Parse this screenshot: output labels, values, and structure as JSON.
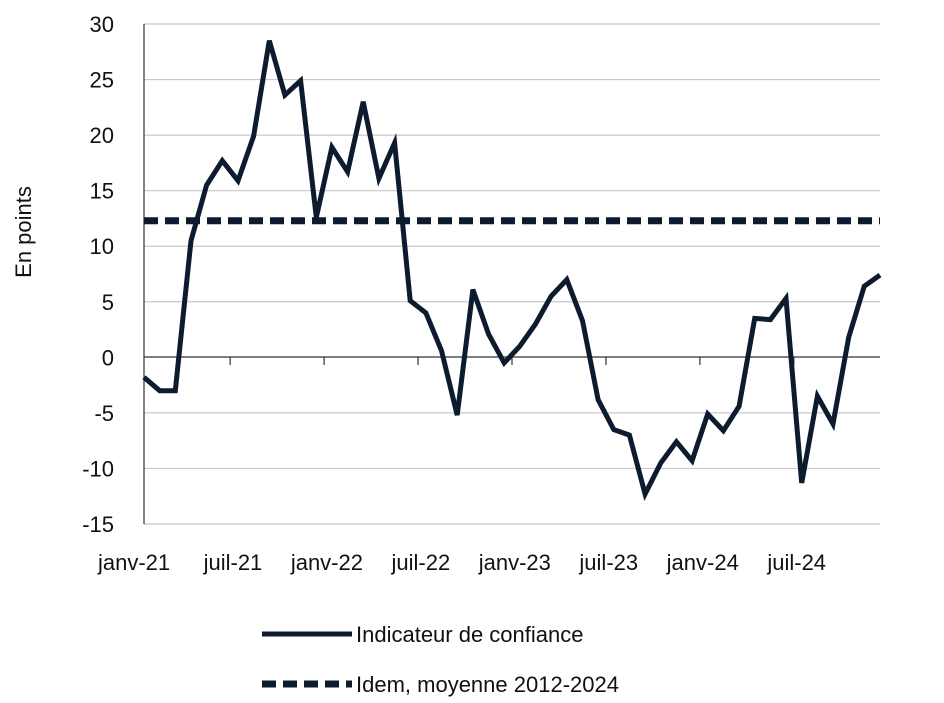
{
  "chart_data": {
    "type": "line",
    "ylabel": "En points",
    "ylim": [
      -15,
      30
    ],
    "yticks": [
      30,
      25,
      20,
      15,
      10,
      5,
      0,
      -5,
      -10,
      -15
    ],
    "x_tick_labels": [
      "janv-21",
      "juil-21",
      "janv-22",
      "juil-22",
      "janv-23",
      "juil-23",
      "janv-24",
      "juil-24"
    ],
    "grid": "horizontal",
    "legend_position": "bottom",
    "colors": {
      "line": "#0d1b2e",
      "grid": "#c8c8c8",
      "axis": "#333333"
    },
    "series": [
      {
        "name": "Indicateur de confiance",
        "style": "solid",
        "values": [
          -1.8,
          -3.0,
          -3.0,
          10.5,
          15.5,
          17.7,
          15.9,
          19.9,
          28.5,
          23.6,
          24.9,
          12.6,
          18.9,
          16.7,
          23.0,
          16.1,
          19.3,
          5.1,
          4.0,
          0.6,
          -5.2,
          6.1,
          2.1,
          -0.5,
          1.0,
          3.0,
          5.5,
          7.0,
          3.3,
          -3.8,
          -6.5,
          -7.0,
          -12.3,
          -9.5,
          -7.6,
          -9.3,
          -5.1,
          -6.6,
          -4.4,
          3.5,
          3.4,
          5.3,
          -11.3,
          -3.5,
          -6.0,
          1.8,
          6.4,
          7.4
        ]
      },
      {
        "name": "Idem, moyenne 2012-2024",
        "style": "dashed",
        "values": [
          12.3,
          12.3,
          12.3,
          12.3,
          12.3,
          12.3,
          12.3,
          12.3,
          12.3,
          12.3,
          12.3,
          12.3,
          12.3,
          12.3,
          12.3,
          12.3,
          12.3,
          12.3,
          12.3,
          12.3,
          12.3,
          12.3,
          12.3,
          12.3,
          12.3,
          12.3,
          12.3,
          12.3,
          12.3,
          12.3,
          12.3,
          12.3,
          12.3,
          12.3,
          12.3,
          12.3,
          12.3,
          12.3,
          12.3,
          12.3,
          12.3,
          12.3,
          12.3,
          12.3,
          12.3,
          12.3,
          12.3,
          12.3
        ]
      }
    ]
  }
}
